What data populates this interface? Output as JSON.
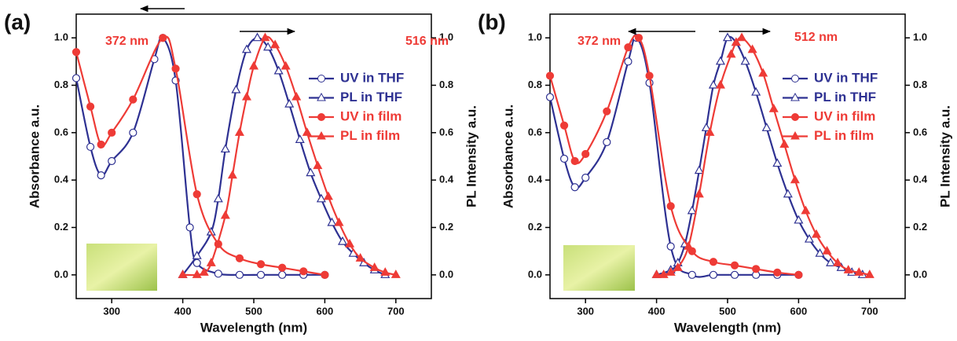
{
  "chart_data": [
    {
      "type": "line",
      "panel_label": "(a)",
      "x_label": "Wavelength (nm)",
      "y_label": "Absorbance a.u.",
      "y2_label": "PL Intensity a.u.",
      "annotations": [
        "372 nm",
        "516 nm"
      ],
      "legend": "upper right",
      "xlim": [
        250,
        750
      ],
      "xticks": [
        300,
        400,
        500,
        600,
        700
      ],
      "ylim": [
        -0.1,
        1.1
      ],
      "yticks": [
        {
          "value": 0,
          "label": "0.0"
        },
        0.2,
        0.4,
        0.6,
        0.8,
        {
          "value": 1,
          "label": "1.0"
        }
      ],
      "y2lim": [
        -0.1,
        1.1
      ],
      "y2ticks": [
        {
          "value": 0,
          "label": "0.0"
        },
        0.2,
        0.4,
        0.6,
        0.8,
        {
          "value": 1,
          "label": "1.0"
        }
      ],
      "series": [
        {
          "name": "UV in THF",
          "color": "#2e3192",
          "marker": "circle-open",
          "x": [
            250,
            270,
            285,
            300,
            330,
            360,
            372,
            390,
            410,
            420,
            450,
            480,
            510,
            540,
            570,
            600
          ],
          "values": [
            0.83,
            0.54,
            0.42,
            0.48,
            0.6,
            0.91,
            1.0,
            0.82,
            0.2,
            0.05,
            0.005,
            0,
            0,
            0,
            0,
            0
          ]
        },
        {
          "name": "PL in THF",
          "color": "#2e3192",
          "marker": "triangle-open",
          "axis": "y2",
          "x": [
            400,
            420,
            440,
            450,
            460,
            475,
            490,
            505,
            520,
            535,
            550,
            565,
            580,
            595,
            610,
            625,
            640,
            655,
            670,
            685
          ],
          "values": [
            0.0,
            0.08,
            0.18,
            0.32,
            0.53,
            0.78,
            0.95,
            1.0,
            0.96,
            0.86,
            0.72,
            0.57,
            0.43,
            0.32,
            0.22,
            0.14,
            0.09,
            0.05,
            0.02,
            0.0
          ]
        },
        {
          "name": "UV in film",
          "color": "#ee3b36",
          "marker": "circle",
          "x": [
            250,
            270,
            285,
            300,
            330,
            372,
            390,
            420,
            450,
            480,
            510,
            540,
            570,
            600
          ],
          "values": [
            0.94,
            0.71,
            0.55,
            0.6,
            0.74,
            1.0,
            0.87,
            0.34,
            0.13,
            0.07,
            0.045,
            0.03,
            0.015,
            0.0
          ]
        },
        {
          "name": "PL in film",
          "color": "#ee3b36",
          "marker": "triangle",
          "axis": "y2",
          "x": [
            400,
            420,
            430,
            440,
            460,
            470,
            480,
            490,
            500,
            516,
            530,
            545,
            560,
            575,
            590,
            605,
            620,
            635,
            650,
            670,
            685,
            700
          ],
          "values": [
            0.0,
            0.0,
            0.01,
            0.05,
            0.25,
            0.42,
            0.6,
            0.75,
            0.88,
            1.0,
            0.97,
            0.88,
            0.75,
            0.6,
            0.46,
            0.33,
            0.22,
            0.13,
            0.07,
            0.03,
            0.01,
            0.0
          ]
        }
      ]
    },
    {
      "type": "line",
      "panel_label": "(b)",
      "x_label": "Wavelength (nm)",
      "y_label": "Absorbance a.u.",
      "y2_label": "PL Intensity a.u.",
      "annotations": [
        "372 nm",
        "512 nm"
      ],
      "legend": "upper right",
      "xlim": [
        250,
        750
      ],
      "xticks": [
        300,
        400,
        500,
        600,
        700
      ],
      "ylim": [
        -0.1,
        1.1
      ],
      "yticks": [
        {
          "value": 0,
          "label": "0.0"
        },
        0.2,
        0.4,
        0.6,
        0.8,
        {
          "value": 1,
          "label": "1.0"
        }
      ],
      "y2lim": [
        -0.1,
        1.1
      ],
      "y2ticks": [
        {
          "value": 0,
          "label": "0.0"
        },
        0.2,
        0.4,
        0.6,
        0.8,
        {
          "value": 1,
          "label": "1.0"
        }
      ],
      "series": [
        {
          "name": "UV in THF",
          "color": "#2e3192",
          "marker": "circle-open",
          "x": [
            250,
            270,
            285,
            300,
            330,
            360,
            372,
            390,
            420,
            450,
            480,
            510,
            540,
            570,
            600
          ],
          "values": [
            0.75,
            0.49,
            0.37,
            0.41,
            0.56,
            0.9,
            1.0,
            0.81,
            0.12,
            0.0,
            0,
            0,
            0,
            0,
            0
          ]
        },
        {
          "name": "PL in THF",
          "color": "#2e3192",
          "marker": "triangle-open",
          "axis": "y2",
          "x": [
            400,
            420,
            430,
            440,
            450,
            460,
            470,
            480,
            490,
            500,
            512,
            525,
            540,
            555,
            570,
            585,
            600,
            615,
            630,
            645,
            660,
            675,
            690
          ],
          "values": [
            0.0,
            0.02,
            0.05,
            0.13,
            0.27,
            0.44,
            0.62,
            0.8,
            0.9,
            1.0,
            0.98,
            0.9,
            0.77,
            0.62,
            0.47,
            0.34,
            0.23,
            0.15,
            0.09,
            0.05,
            0.03,
            0.01,
            0.0
          ]
        },
        {
          "name": "UV in film",
          "color": "#ee3b36",
          "marker": "circle",
          "x": [
            250,
            270,
            285,
            300,
            330,
            360,
            375,
            390,
            420,
            450,
            480,
            510,
            540,
            570,
            600
          ],
          "values": [
            0.84,
            0.63,
            0.48,
            0.51,
            0.69,
            0.96,
            1.0,
            0.84,
            0.29,
            0.1,
            0.055,
            0.04,
            0.025,
            0.01,
            0.0
          ]
        },
        {
          "name": "PL in film",
          "color": "#ee3b36",
          "marker": "triangle",
          "axis": "y2",
          "x": [
            400,
            410,
            420,
            430,
            445,
            460,
            475,
            490,
            505,
            512,
            520,
            535,
            550,
            565,
            580,
            595,
            610,
            625,
            640,
            655,
            670,
            685,
            700
          ],
          "values": [
            0.0,
            0.0,
            0.01,
            0.03,
            0.12,
            0.34,
            0.6,
            0.8,
            0.93,
            0.98,
            1.0,
            0.95,
            0.85,
            0.7,
            0.55,
            0.4,
            0.27,
            0.17,
            0.1,
            0.05,
            0.02,
            0.01,
            0.0
          ]
        }
      ]
    }
  ]
}
